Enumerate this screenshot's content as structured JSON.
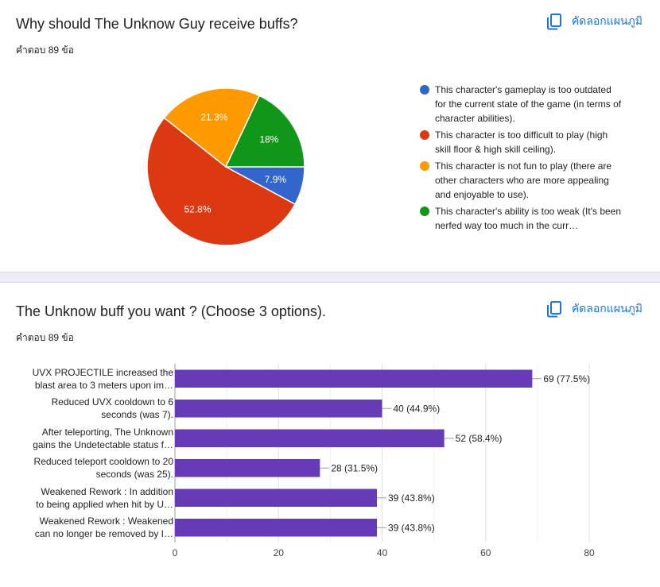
{
  "q1": {
    "title": "Why should The Unknow Guy receive buffs?",
    "count": "คำตอบ 89 ข้อ",
    "copy_label": "คัดลอกแผนภูมิ"
  },
  "q2": {
    "title": "The Unknow buff you want ? (Choose 3 options).",
    "count": "คำตอบ 89 ข้อ",
    "copy_label": "คัดลอกแผนภูมิ"
  },
  "icons": {
    "copy": "copy-icon"
  },
  "colors": {
    "accent": "#1a73e8",
    "divider": "#f0ebf8"
  },
  "chart_data": [
    {
      "type": "pie",
      "slices": [
        {
          "label": "This character's gameplay is too outdated for the current state of the game (in terms of character abilities).",
          "value": 7.9,
          "display": "7.9%",
          "color": "#3366cc"
        },
        {
          "label": "This character is too difficult to play (high skill floor & high skill ceiling).",
          "value": 52.8,
          "display": "52.8%",
          "color": "#dc3912"
        },
        {
          "label": "This character is not fun to play (there are other characters who are more appealing and enjoyable to use).",
          "value": 21.3,
          "display": "21.3%",
          "color": "#ff9900"
        },
        {
          "label": "This character's ability is too weak (It's been nerfed way too much in the curr…",
          "value": 18,
          "display": "18%",
          "color": "#109618"
        }
      ],
      "legend_position": "right"
    },
    {
      "type": "bar",
      "orientation": "horizontal",
      "categories": [
        "UVX PROJECTILE increased the\nblast area to 3 meters upon im…",
        "Reduced UVX cooldown to 6\nseconds (was 7).",
        "After teleporting, The Unknown\ngains the Undetectable status f…",
        "Reduced teleport cooldown to 20\nseconds (was 25).",
        "Weakened Rework : In addition\nto being applied when hit by U…",
        "Weakened Rework : Weakened\ncan no longer be removed by I…"
      ],
      "values": [
        69,
        40,
        52,
        28,
        39,
        39
      ],
      "value_labels": [
        "69 (77.5%)",
        "40 (44.9%)",
        "52 (58.4%)",
        "28 (31.5%)",
        "39 (43.8%)",
        "39 (43.8%)"
      ],
      "xlim": [
        0,
        80
      ],
      "xticks": [
        "0",
        "20",
        "40",
        "60",
        "80"
      ],
      "grid": true,
      "bar_color": "#673ab7"
    }
  ]
}
